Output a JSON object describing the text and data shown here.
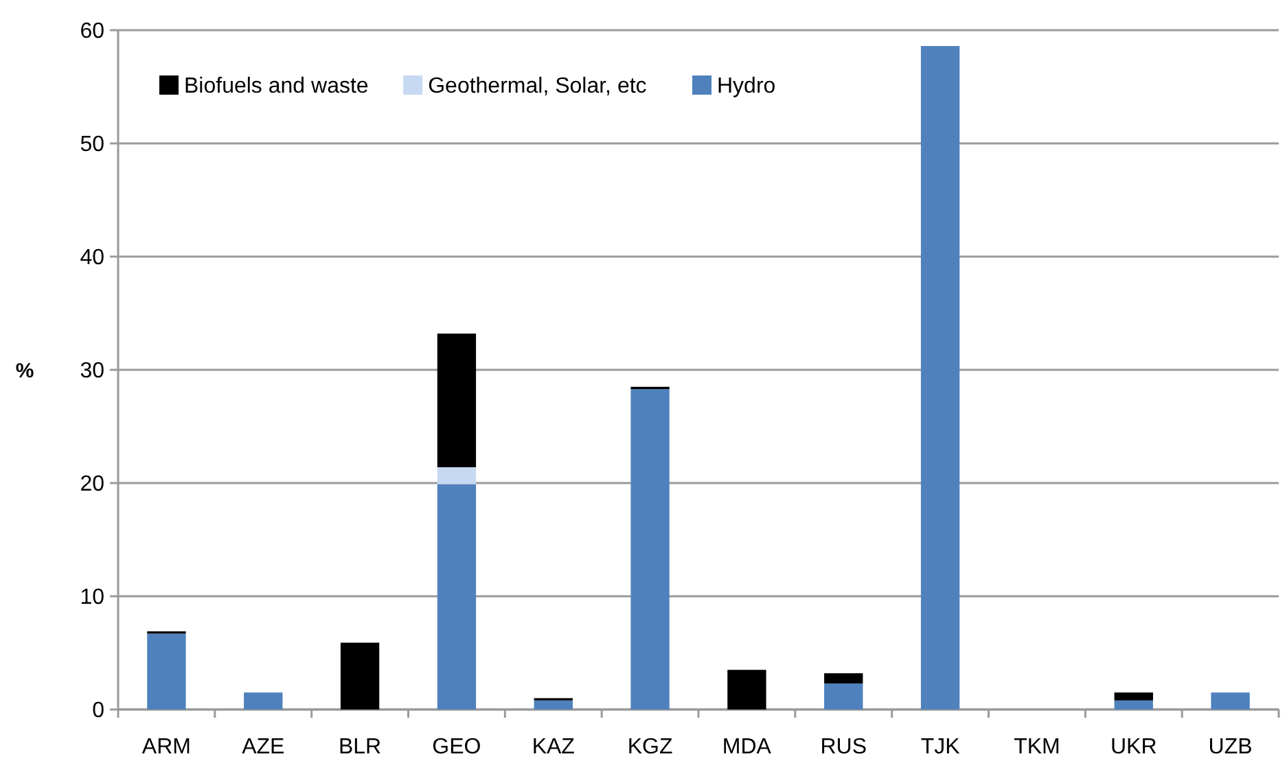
{
  "chart_data": {
    "type": "bar",
    "stacked": true,
    "ylabel": "%",
    "categories": [
      "ARM",
      "AZE",
      "BLR",
      "GEO",
      "KAZ",
      "KGZ",
      "MDA",
      "RUS",
      "TJK",
      "TKM",
      "UKR",
      "UZB"
    ],
    "series": [
      {
        "name": "Hydro",
        "color": "#4f81bd",
        "values": [
          6.7,
          1.5,
          0,
          19.9,
          0.8,
          28.3,
          0,
          2.3,
          58.6,
          0,
          0.8,
          1.5
        ]
      },
      {
        "name": "Geothermal, Solar, etc",
        "color": "#c6d9f1",
        "values": [
          0,
          0,
          0,
          1.5,
          0,
          0,
          0,
          0,
          0,
          0,
          0,
          0
        ]
      },
      {
        "name": "Biofuels and waste",
        "color": "#000000",
        "values": [
          0.2,
          0,
          5.9,
          11.8,
          0.2,
          0.2,
          3.5,
          0.9,
          0,
          0,
          0.7,
          0
        ]
      }
    ],
    "ylim": [
      0,
      60
    ],
    "yticks": [
      0,
      10,
      20,
      30,
      40,
      50,
      60
    ],
    "grid": "y",
    "legend": "top left"
  }
}
